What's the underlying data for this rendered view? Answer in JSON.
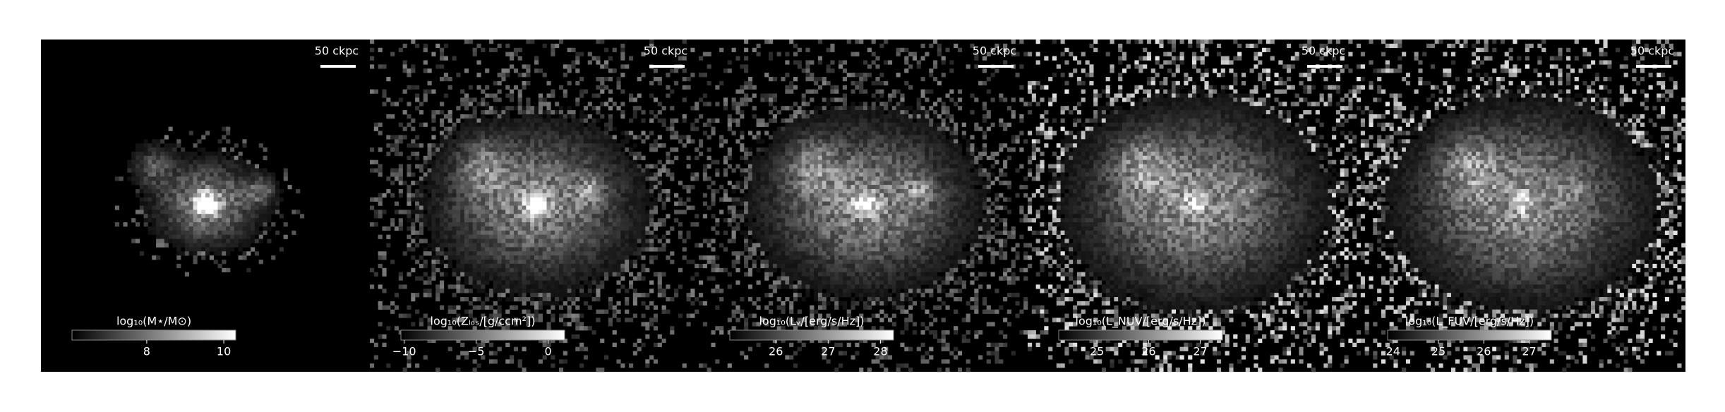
{
  "panels": [
    {
      "scale_bar": "50 ckpc",
      "colorbar": {
        "label": "log₁₀(M⋆/M⊙)",
        "lim": [
          6.06,
          10.31
        ],
        "ticks": [
          8,
          10
        ]
      }
    },
    {
      "scale_bar": "50 ckpc",
      "colorbar": {
        "label": "log₁₀(Zₗₒₛ/[g/ccm²])",
        "lim": [
          -10.23,
          1.15
        ],
        "ticks": [
          {
            "value": -10,
            "label": "−10"
          },
          {
            "value": -5,
            "label": "−5"
          },
          0
        ]
      }
    },
    {
      "scale_bar": "50 ckpc",
      "colorbar": {
        "label": "log₁₀(Lᵥ/[erg/s/Hz])",
        "lim": [
          25.12,
          28.25
        ],
        "ticks": [
          26,
          27,
          28
        ]
      }
    },
    {
      "scale_bar": "50 ckpc",
      "colorbar": {
        "label": "log₁₀(L_NUV/[erg/s/Hz])",
        "lim": [
          24.26,
          27.43
        ],
        "ticks": [
          25,
          26,
          27
        ]
      }
    },
    {
      "scale_bar": "50 ckpc",
      "colorbar": {
        "label": "log₁₀(L_FUV/[erg/s/Hz])",
        "lim": [
          23.88,
          27.49
        ],
        "ticks": [
          24,
          25,
          26,
          27
        ]
      }
    }
  ]
}
